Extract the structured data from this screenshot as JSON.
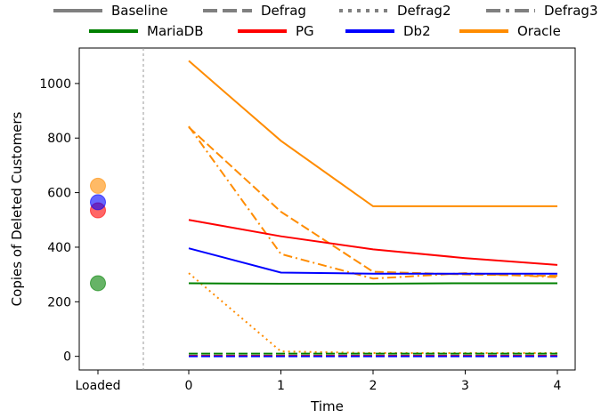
{
  "chart_data": {
    "type": "line",
    "title": "",
    "xlabel": "Time",
    "ylabel": "Copies of Deleted Customers",
    "x": [
      0,
      1,
      2,
      3,
      4
    ],
    "x_extra_label": "Loaded",
    "xticks": [
      "Loaded",
      "0",
      "1",
      "2",
      "3",
      "4"
    ],
    "yticks": [
      "0",
      "200",
      "400",
      "600",
      "800",
      "1000"
    ],
    "ylim": [
      -50,
      1130
    ],
    "grid": false,
    "legend_position": "top (outside, two rows)",
    "style_legend": [
      {
        "name": "Baseline",
        "dash": "solid"
      },
      {
        "name": "Defrag",
        "dash": "dashed"
      },
      {
        "name": "Defrag2",
        "dash": "dotted"
      },
      {
        "name": "Defrag3",
        "dash": "dashdot"
      }
    ],
    "db_legend": [
      {
        "name": "MariaDB",
        "color": "#008000"
      },
      {
        "name": "PG",
        "color": "#ff0000"
      },
      {
        "name": "Db2",
        "color": "#0000ff"
      },
      {
        "name": "Oracle",
        "color": "#ff8c00"
      }
    ],
    "loaded_points": [
      {
        "db": "MariaDB",
        "value": 268
      },
      {
        "db": "PG",
        "value": 535
      },
      {
        "db": "Db2",
        "value": 565
      },
      {
        "db": "Oracle",
        "value": 625
      }
    ],
    "series": [
      {
        "db": "Oracle",
        "style": "Baseline",
        "values": [
          1083,
          790,
          550,
          550,
          550
        ]
      },
      {
        "db": "Oracle",
        "style": "Defrag",
        "values": [
          840,
          530,
          310,
          300,
          295
        ]
      },
      {
        "db": "Oracle",
        "style": "Defrag3",
        "values": [
          843,
          375,
          285,
          305,
          290
        ]
      },
      {
        "db": "Oracle",
        "style": "Defrag2",
        "values": [
          305,
          18,
          12,
          12,
          12
        ]
      },
      {
        "db": "PG",
        "style": "Baseline",
        "values": [
          500,
          440,
          392,
          360,
          335
        ]
      },
      {
        "db": "Db2",
        "style": "Baseline",
        "values": [
          396,
          307,
          303,
          303,
          303
        ]
      },
      {
        "db": "MariaDB",
        "style": "Baseline",
        "values": [
          268,
          266,
          266,
          268,
          268
        ]
      },
      {
        "db": "MariaDB",
        "style": "Defrag",
        "values": [
          10,
          10,
          10,
          10,
          10
        ]
      },
      {
        "db": "PG",
        "style": "Defrag",
        "values": [
          2,
          2,
          2,
          2,
          2
        ]
      },
      {
        "db": "Db2",
        "style": "Defrag",
        "values": [
          0,
          0,
          0,
          0,
          0
        ]
      }
    ]
  }
}
